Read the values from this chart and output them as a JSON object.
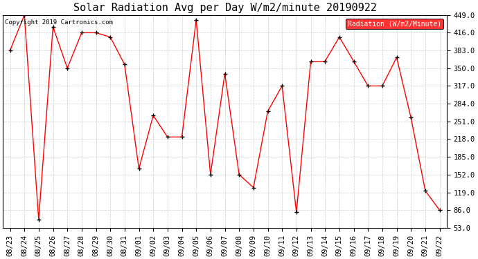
{
  "title": "Solar Radiation Avg per Day W/m2/minute 20190922",
  "copyright": "Copyright 2019 Cartronics.com",
  "legend_label": "Radiation (W/m2/Minute)",
  "dates": [
    "08/23",
    "08/24",
    "08/25",
    "08/26",
    "08/27",
    "08/28",
    "08/29",
    "08/30",
    "08/31",
    "09/01",
    "09/02",
    "09/03",
    "09/04",
    "09/05",
    "09/06",
    "09/07",
    "09/08",
    "09/09",
    "09/10",
    "09/11",
    "09/12",
    "09/13",
    "09/14",
    "09/15",
    "09/16",
    "09/17",
    "09/18",
    "09/19",
    "09/20",
    "09/21",
    "09/22"
  ],
  "values": [
    383,
    449,
    68,
    427,
    350,
    416,
    416,
    408,
    357,
    163,
    262,
    222,
    222,
    440,
    152,
    340,
    152,
    128,
    270,
    317,
    82,
    362,
    363,
    408,
    363,
    317,
    317,
    370,
    258,
    122,
    86
  ],
  "line_color": "red",
  "marker_color": "black",
  "grid_color": "#cccccc",
  "background_color": "#ffffff",
  "legend_bg": "red",
  "legend_text_color": "white",
  "yticks": [
    53.0,
    86.0,
    119.0,
    152.0,
    185.0,
    218.0,
    251.0,
    284.0,
    317.0,
    350.0,
    383.0,
    416.0,
    449.0
  ],
  "ylim": [
    53.0,
    449.0
  ],
  "title_fontsize": 11,
  "copyright_fontsize": 6.5,
  "legend_fontsize": 7,
  "tick_fontsize": 7.5
}
